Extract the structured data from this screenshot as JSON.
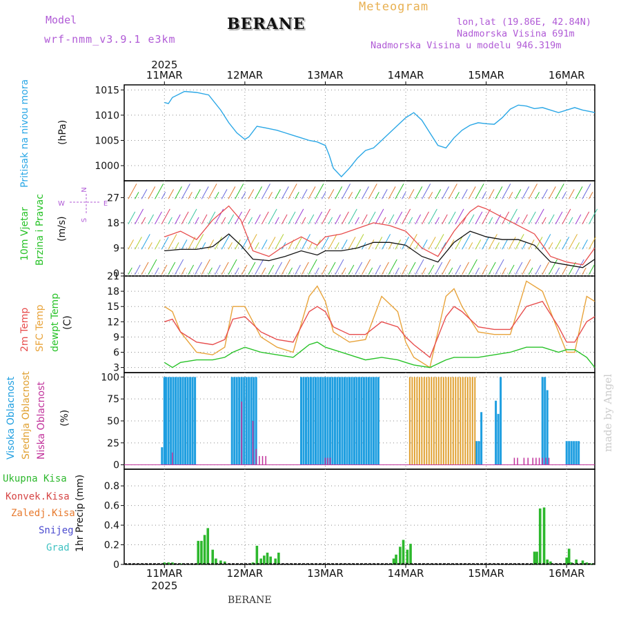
{
  "header": {
    "model_label": "Model",
    "model_name": "wrf-nmm_v3.9.1 e3km",
    "title": "BERANE",
    "meteogram_label": "Meteogram",
    "lonlat": "lon,lat (19.86E, 42.84N)",
    "elevation": "Nadmorska Visina 691m",
    "model_elevation": "Nadmorska Visina u modelu 946.319m",
    "footer": "BERANE",
    "credit": "made by Angel"
  },
  "colors": {
    "pressure": "#2aa7e6",
    "wind": "#111111",
    "gust": "#e74c4c",
    "temp2m": "#e74c4c",
    "sfc": "#e8a33a",
    "dew": "#27c227",
    "high": "#1e9ee0",
    "mid": "#e0a030",
    "low": "#c0309a",
    "precip": "#2db82d",
    "conv": "#d64545",
    "frozen": "#e77a2e",
    "snow": "#4a4acf",
    "graupel": "#3fc2c2",
    "model": "#b05ad6"
  },
  "chart_data": [
    {
      "type": "line",
      "name": "pressure",
      "ylabel_a": "Pritisak na nivou mora",
      "ylabel_b": "(hPa)",
      "ylim": [
        997,
        1016
      ],
      "yticks": [
        1000,
        1005,
        1010,
        1015
      ],
      "x": [
        0,
        0.05,
        0.1,
        0.25,
        0.4,
        0.55,
        0.7,
        0.8,
        0.9,
        1.0,
        1.05,
        1.15,
        1.25,
        1.4,
        1.5,
        1.6,
        1.7,
        1.8,
        1.9,
        2.0,
        2.05,
        2.1,
        2.2,
        2.3,
        2.4,
        2.5,
        2.6,
        2.7,
        2.8,
        2.9,
        3.0,
        3.1,
        3.2,
        3.3,
        3.4,
        3.5,
        3.55,
        3.6,
        3.7,
        3.8,
        3.9,
        4.0,
        4.1,
        4.2,
        4.3,
        4.4,
        4.5,
        4.6,
        4.7,
        4.8,
        4.9,
        5.0,
        5.1,
        5.2,
        5.3,
        5.35
      ],
      "y": [
        1012.5,
        1012.3,
        1013.5,
        1014.7,
        1014.5,
        1014.0,
        1011.0,
        1008.5,
        1006.5,
        1005.2,
        1005.7,
        1007.8,
        1007.5,
        1007.0,
        1006.5,
        1006.0,
        1005.5,
        1005.0,
        1004.7,
        1004.0,
        1002.0,
        999.5,
        997.8,
        999.5,
        1001.5,
        1003.0,
        1003.5,
        1005.0,
        1006.5,
        1008.0,
        1009.5,
        1010.5,
        1009.0,
        1006.5,
        1004.0,
        1003.5,
        1004.5,
        1005.5,
        1007.0,
        1008.0,
        1008.5,
        1008.3,
        1008.2,
        1009.5,
        1011.2,
        1012.0,
        1011.8,
        1011.3,
        1011.5,
        1011.0,
        1010.5,
        1011.0,
        1011.5,
        1011.0,
        1010.7,
        1010.5
      ]
    },
    {
      "type": "line",
      "name": "wind",
      "ylabel_a": "10m Vjetar",
      "ylabel_b": "Brzina i Pravac",
      "ylabel_c": "(m/s)",
      "compass": {
        "n": "N",
        "s": "S",
        "w": "W",
        "e": "E"
      },
      "ylim": [
        -1,
        33
      ],
      "yticks": [
        0,
        9,
        18,
        27
      ],
      "series": [
        {
          "name": "wind speed",
          "x": [
            0,
            0.2,
            0.4,
            0.6,
            0.8,
            0.95,
            1.1,
            1.3,
            1.5,
            1.7,
            1.9,
            2.0,
            2.2,
            2.4,
            2.6,
            2.8,
            3.0,
            3.2,
            3.4,
            3.6,
            3.8,
            3.9,
            4.0,
            4.2,
            4.4,
            4.6,
            4.8,
            5.0,
            5.2,
            5.35
          ],
          "y": [
            8,
            8.5,
            8.5,
            9.5,
            14,
            10,
            5,
            4.5,
            6,
            8,
            6.5,
            8,
            8,
            9,
            11,
            11,
            10,
            6,
            4,
            11,
            15,
            14,
            13,
            12,
            12,
            10,
            4,
            3,
            2,
            5
          ]
        },
        {
          "name": "gust",
          "x": [
            0,
            0.2,
            0.4,
            0.6,
            0.8,
            0.95,
            1.1,
            1.3,
            1.5,
            1.7,
            1.9,
            2.0,
            2.2,
            2.4,
            2.6,
            2.8,
            3.0,
            3.2,
            3.4,
            3.6,
            3.8,
            3.9,
            4.0,
            4.2,
            4.4,
            4.6,
            4.8,
            5.0,
            5.2,
            5.35
          ],
          "y": [
            13,
            15,
            12,
            19,
            24,
            19,
            8,
            6,
            10,
            13,
            10,
            13,
            14,
            16,
            18,
            17,
            15,
            9,
            6,
            15,
            22,
            24,
            23,
            20,
            17,
            14,
            6,
            4,
            3,
            9
          ]
        }
      ]
    },
    {
      "type": "line",
      "name": "temperature",
      "ylabel_a": "2m Temp",
      "ylabel_b": "SFC Temp",
      "ylabel_c": "dewpt Temp",
      "ylabel_d": "(C)",
      "ylim": [
        2,
        21
      ],
      "yticks": [
        3,
        6,
        9,
        12,
        15,
        18,
        21
      ],
      "series": [
        {
          "name": "2m Temp",
          "x": [
            0,
            0.1,
            0.2,
            0.4,
            0.6,
            0.75,
            0.85,
            1.0,
            1.2,
            1.4,
            1.6,
            1.8,
            1.9,
            2.0,
            2.1,
            2.3,
            2.5,
            2.7,
            2.9,
            3.0,
            3.1,
            3.3,
            3.5,
            3.6,
            3.7,
            3.9,
            4.1,
            4.3,
            4.5,
            4.7,
            4.9,
            5.0,
            5.1,
            5.25,
            5.35
          ],
          "y": [
            12,
            12.5,
            10,
            8,
            7.5,
            8.5,
            12.5,
            13,
            10,
            8.5,
            8,
            14,
            15,
            14,
            11,
            9.5,
            9.5,
            12,
            11,
            9,
            7.5,
            5,
            13,
            15,
            14,
            11,
            10.5,
            10.5,
            15,
            16,
            11,
            8,
            8,
            12,
            13
          ]
        },
        {
          "name": "SFC Temp",
          "x": [
            0,
            0.1,
            0.2,
            0.4,
            0.6,
            0.75,
            0.85,
            1.0,
            1.2,
            1.4,
            1.6,
            1.8,
            1.9,
            2.0,
            2.1,
            2.3,
            2.5,
            2.7,
            2.9,
            3.0,
            3.1,
            3.3,
            3.5,
            3.6,
            3.7,
            3.9,
            4.1,
            4.3,
            4.5,
            4.7,
            4.9,
            5.0,
            5.1,
            5.25,
            5.35
          ],
          "y": [
            15,
            14,
            10,
            6,
            5.5,
            7,
            15,
            15,
            9,
            7,
            6,
            17,
            19,
            16,
            10,
            8,
            8.5,
            17,
            14,
            8,
            5,
            3,
            17,
            18.5,
            15,
            10,
            9.5,
            9.5,
            20,
            18,
            10,
            6,
            6,
            17,
            16
          ]
        },
        {
          "name": "dewpt Temp",
          "x": [
            0,
            0.1,
            0.2,
            0.4,
            0.6,
            0.75,
            0.85,
            1.0,
            1.2,
            1.4,
            1.6,
            1.8,
            1.9,
            2.0,
            2.1,
            2.3,
            2.5,
            2.7,
            2.9,
            3.0,
            3.1,
            3.3,
            3.5,
            3.6,
            3.7,
            3.9,
            4.1,
            4.3,
            4.5,
            4.7,
            4.9,
            5.0,
            5.1,
            5.25,
            5.35
          ],
          "y": [
            4,
            3,
            4,
            4.5,
            4.5,
            5,
            6,
            7,
            6,
            5.5,
            5,
            7.5,
            8,
            7,
            6.5,
            5.5,
            4.5,
            5,
            4.5,
            4,
            3.5,
            3,
            4.5,
            5,
            5,
            5,
            5.5,
            6,
            7,
            7,
            6,
            6.5,
            6.5,
            5,
            3
          ]
        }
      ]
    },
    {
      "type": "bar",
      "name": "cloud",
      "ylabel_a": "Visoka Oblacnost",
      "ylabel_b": "Srednja Oblacnost",
      "ylabel_c": "Niska Oblacnost",
      "ylabel_d": "(%)",
      "ylim": [
        -5,
        105
      ],
      "yticks": [
        0,
        25,
        50,
        75,
        100
      ],
      "series": [
        {
          "name": "Visoka Oblacnost",
          "x": [
            -0.03,
            0.0,
            0.02,
            0.05,
            0.08,
            0.11,
            0.14,
            0.17,
            0.2,
            0.23,
            0.26,
            0.29,
            0.32,
            0.35,
            0.38,
            0.84,
            0.87,
            0.9,
            0.93,
            0.96,
            0.99,
            1.02,
            1.05,
            1.08,
            1.11,
            1.14,
            1.7,
            1.73,
            1.76,
            1.79,
            1.82,
            1.85,
            1.88,
            1.91,
            1.94,
            1.97,
            2.0,
            2.03,
            2.06,
            2.09,
            2.12,
            2.15,
            2.18,
            2.21,
            2.24,
            2.27,
            2.3,
            2.33,
            2.36,
            2.39,
            2.42,
            2.45,
            2.48,
            2.51,
            2.54,
            2.57,
            2.6,
            2.63,
            2.66,
            3.88,
            3.91,
            3.94,
            4.12,
            4.15,
            4.18,
            4.7,
            4.73,
            4.76,
            5.0,
            5.03,
            5.06,
            5.09,
            5.12,
            5.15
          ],
          "y": [
            20,
            100,
            100,
            100,
            100,
            100,
            100,
            100,
            100,
            100,
            100,
            100,
            100,
            100,
            100,
            100,
            100,
            100,
            100,
            100,
            100,
            100,
            100,
            100,
            100,
            100,
            100,
            100,
            100,
            100,
            100,
            100,
            100,
            100,
            100,
            100,
            100,
            100,
            100,
            100,
            100,
            100,
            100,
            100,
            100,
            100,
            100,
            100,
            100,
            100,
            100,
            100,
            100,
            100,
            100,
            100,
            100,
            100,
            100,
            27,
            27,
            60,
            73,
            58,
            100,
            100,
            100,
            85,
            27,
            27,
            27,
            27,
            27,
            27
          ]
        },
        {
          "name": "Srednja Oblacnost",
          "x": [
            3.05,
            3.08,
            3.11,
            3.14,
            3.17,
            3.2,
            3.23,
            3.26,
            3.29,
            3.32,
            3.35,
            3.38,
            3.41,
            3.44,
            3.47,
            3.5,
            3.53,
            3.56,
            3.59,
            3.62,
            3.65,
            3.68,
            3.71,
            3.74,
            3.77,
            3.8,
            3.83,
            3.86
          ],
          "y": [
            100,
            100,
            100,
            100,
            100,
            100,
            100,
            100,
            100,
            100,
            100,
            100,
            100,
            100,
            100,
            100,
            100,
            100,
            100,
            100,
            100,
            100,
            100,
            100,
            100,
            100,
            100,
            100
          ]
        },
        {
          "name": "Niska Oblacnost",
          "x": [
            0.1,
            0.96,
            1.1,
            1.14,
            1.18,
            1.22,
            1.26,
            2.0,
            2.03,
            2.06,
            4.35,
            4.39,
            4.47,
            4.52,
            4.58,
            4.62,
            4.66,
            4.7,
            4.74,
            4.78
          ],
          "y": [
            14,
            72,
            50,
            18,
            10,
            10,
            10,
            8,
            8,
            8,
            8,
            8,
            8,
            8,
            8,
            8,
            8,
            8,
            8,
            8
          ]
        }
      ]
    },
    {
      "type": "bar",
      "name": "precip",
      "ylabel_a": "1hr Precip",
      "ylabel_b": "(mm)",
      "legend": [
        "Ukupna Kisa",
        "Konvek.Kisa",
        "Zaledj.Kisa",
        "Snijeg",
        "Grad"
      ],
      "ylim": [
        0,
        0.97
      ],
      "yticks": [
        0,
        0.2,
        0.4,
        0.6,
        0.8
      ],
      "x": [
        0,
        0.05,
        0.1,
        0.2,
        0.42,
        0.46,
        0.5,
        0.54,
        0.6,
        0.64,
        0.7,
        0.75,
        1.1,
        1.15,
        1.2,
        1.24,
        1.28,
        1.32,
        1.38,
        1.42,
        2.85,
        2.88,
        2.93,
        2.97,
        3.02,
        3.06,
        4.6,
        4.63,
        4.67,
        4.72,
        4.76,
        4.8,
        5.0,
        5.03,
        5.06,
        5.12,
        5.2,
        5.25,
        5.3,
        5.33
      ],
      "y": [
        0.02,
        0.02,
        0.02,
        0.01,
        0.24,
        0.24,
        0.3,
        0.37,
        0.15,
        0.06,
        0.04,
        0.03,
        0.02,
        0.19,
        0.06,
        0.09,
        0.12,
        0.08,
        0.06,
        0.12,
        0.06,
        0.1,
        0.18,
        0.25,
        0.15,
        0.21,
        0.13,
        0.13,
        0.57,
        0.58,
        0.05,
        0.03,
        0.07,
        0.16,
        0.02,
        0.05,
        0.04,
        0.02,
        0.01,
        0.01
      ]
    }
  ],
  "time_axis": {
    "year": "2025",
    "days": [
      "11MAR",
      "12MAR",
      "13MAR",
      "14MAR",
      "15MAR",
      "16MAR"
    ]
  }
}
